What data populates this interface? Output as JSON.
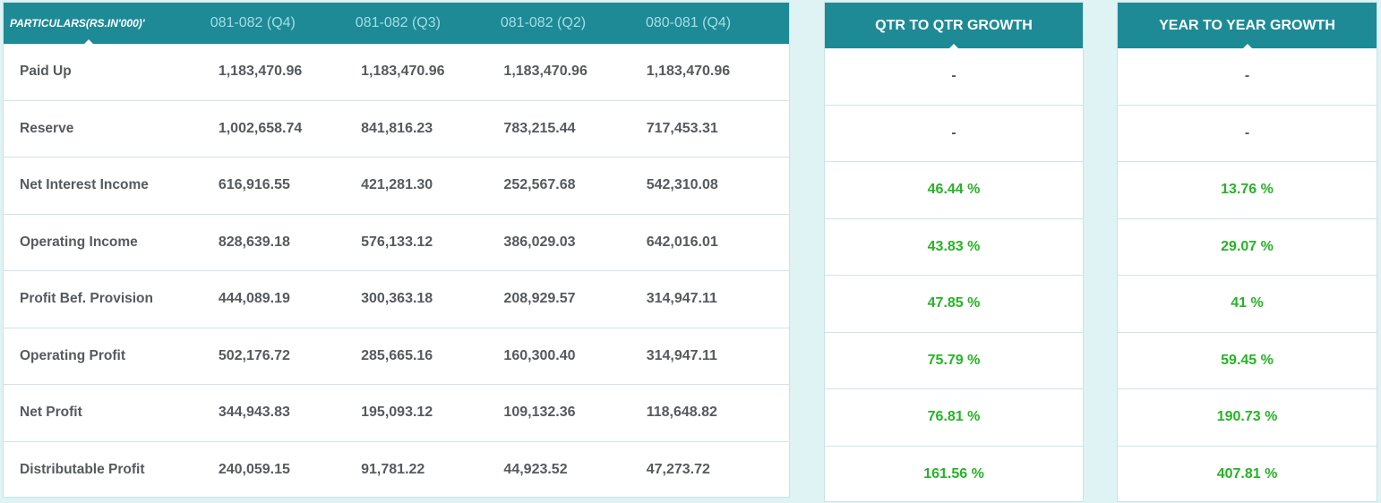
{
  "table": {
    "headers": [
      "PARTICULARS(RS.IN'000)'",
      "081-082 (Q4)",
      "081-082 (Q3)",
      "081-082 (Q2)",
      "080-081 (Q4)"
    ],
    "rows": [
      {
        "label": "Paid Up",
        "values": [
          "1,183,470.96",
          "1,183,470.96",
          "1,183,470.96",
          "1,183,470.96"
        ]
      },
      {
        "label": "Reserve",
        "values": [
          "1,002,658.74",
          "841,816.23",
          "783,215.44",
          "717,453.31"
        ]
      },
      {
        "label": "Net Interest Income",
        "values": [
          "616,916.55",
          "421,281.30",
          "252,567.68",
          "542,310.08"
        ]
      },
      {
        "label": "Operating Income",
        "values": [
          "828,639.18",
          "576,133.12",
          "386,029.03",
          "642,016.01"
        ]
      },
      {
        "label": "Profit Bef. Provision",
        "values": [
          "444,089.19",
          "300,363.18",
          "208,929.57",
          "314,947.11"
        ]
      },
      {
        "label": "Operating Profit",
        "values": [
          "502,176.72",
          "285,665.16",
          "160,300.40",
          "314,947.11"
        ]
      },
      {
        "label": "Net Profit",
        "values": [
          "344,943.83",
          "195,093.12",
          "109,132.36",
          "118,648.82"
        ]
      },
      {
        "label": "Distributable Profit",
        "values": [
          "240,059.15",
          "91,781.22",
          "44,923.52",
          "47,273.72"
        ]
      }
    ]
  },
  "qtr_growth": {
    "title": "QTR TO QTR GROWTH",
    "values": [
      "-",
      "-",
      "46.44 %",
      "43.83 %",
      "47.85 %",
      "75.79 %",
      "76.81 %",
      "161.56 %"
    ]
  },
  "yoy_growth": {
    "title": "YEAR TO YEAR GROWTH",
    "values": [
      "-",
      "-",
      "13.76 %",
      "29.07 %",
      "41 %",
      "59.45 %",
      "190.73 %",
      "407.81 %"
    ]
  },
  "colors": {
    "header_bg": "#1d8a96",
    "positive_growth": "#27b327",
    "text": "#555a5e",
    "page_bg": "#dff3f5"
  }
}
